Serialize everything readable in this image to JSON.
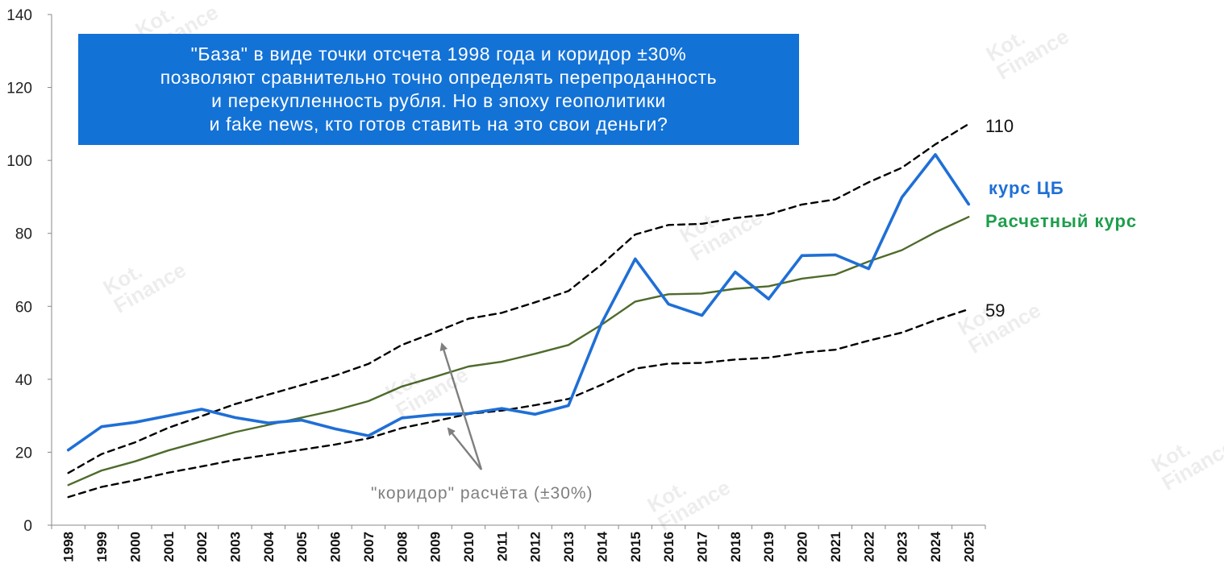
{
  "chart_data": {
    "type": "line",
    "title": "",
    "xlabel": "",
    "ylabel": "",
    "ylim": [
      0,
      140
    ],
    "y_ticks": [
      0,
      20,
      40,
      60,
      80,
      100,
      120,
      140
    ],
    "grid": false,
    "categories": [
      "1998",
      "1999",
      "2000",
      "2001",
      "2002",
      "2003",
      "2004",
      "2005",
      "2006",
      "2007",
      "2008",
      "2009",
      "2010",
      "2011",
      "2012",
      "2013",
      "2014",
      "2015",
      "2016",
      "2017",
      "2018",
      "2019",
      "2020",
      "2021",
      "2022",
      "2023",
      "2024",
      "2025"
    ],
    "series": [
      {
        "name": "курс ЦБ",
        "key": "cb",
        "color": "#1f6fd6",
        "style": "solid",
        "values": [
          20.6,
          27.0,
          28.2,
          30.0,
          31.8,
          29.5,
          28.0,
          28.8,
          26.4,
          24.5,
          29.4,
          30.3,
          30.6,
          32.0,
          30.4,
          32.8,
          55.5,
          73.0,
          60.6,
          57.5,
          69.4,
          62.0,
          73.9,
          74.1,
          70.3,
          89.9,
          101.6,
          88.0
        ]
      },
      {
        "name": "Расчетный курс",
        "key": "calc",
        "color": "#4e6b2c",
        "style": "solid",
        "values": [
          11.0,
          15.0,
          17.5,
          20.5,
          23.0,
          25.5,
          27.5,
          29.5,
          31.5,
          34.0,
          38.0,
          40.7,
          43.5,
          44.8,
          47.0,
          49.4,
          55.0,
          61.3,
          63.3,
          63.5,
          64.8,
          65.5,
          67.6,
          68.7,
          72.3,
          75.4,
          80.3,
          84.5
        ]
      },
      {
        "name": "",
        "key": "upper",
        "color": "#000000",
        "style": "dashed",
        "values": [
          14.3,
          19.5,
          22.7,
          26.7,
          29.9,
          33.2,
          35.8,
          38.4,
          41.0,
          44.2,
          49.4,
          52.9,
          56.6,
          58.2,
          61.1,
          64.2,
          71.5,
          79.7,
          82.3,
          82.6,
          84.2,
          85.2,
          87.9,
          89.3,
          94.0,
          98.0,
          104.4,
          110.0
        ]
      },
      {
        "name": "",
        "key": "lower",
        "color": "#000000",
        "style": "dashed",
        "values": [
          7.7,
          10.5,
          12.3,
          14.4,
          16.1,
          17.9,
          19.3,
          20.7,
          22.1,
          23.8,
          26.6,
          28.5,
          30.5,
          31.4,
          32.9,
          34.6,
          38.5,
          42.9,
          44.3,
          44.5,
          45.4,
          45.9,
          47.3,
          48.1,
          50.6,
          52.8,
          56.2,
          59.2
        ]
      }
    ],
    "end_labels": {
      "upper": "110",
      "cb": "курс ЦБ",
      "calc": "Расчетный курс",
      "lower": "59"
    },
    "annotation": {
      "text": "\"коридор\" расчёта (±30%)",
      "color": "#7f7f7f"
    }
  },
  "callout": {
    "text": "\"База\" в виде точки отсчета 1998 года и коридор ±30%\nпозволяют сравнительно точно определять перепроданность\nи перекупленность рубля. Но в эпоху геополитики\nи fake news, кто готов ставить на это свои деньги?",
    "bg_color": "#1372d6",
    "text_color": "#ffffff"
  },
  "watermark": {
    "text": "Kot.\nFinance"
  }
}
